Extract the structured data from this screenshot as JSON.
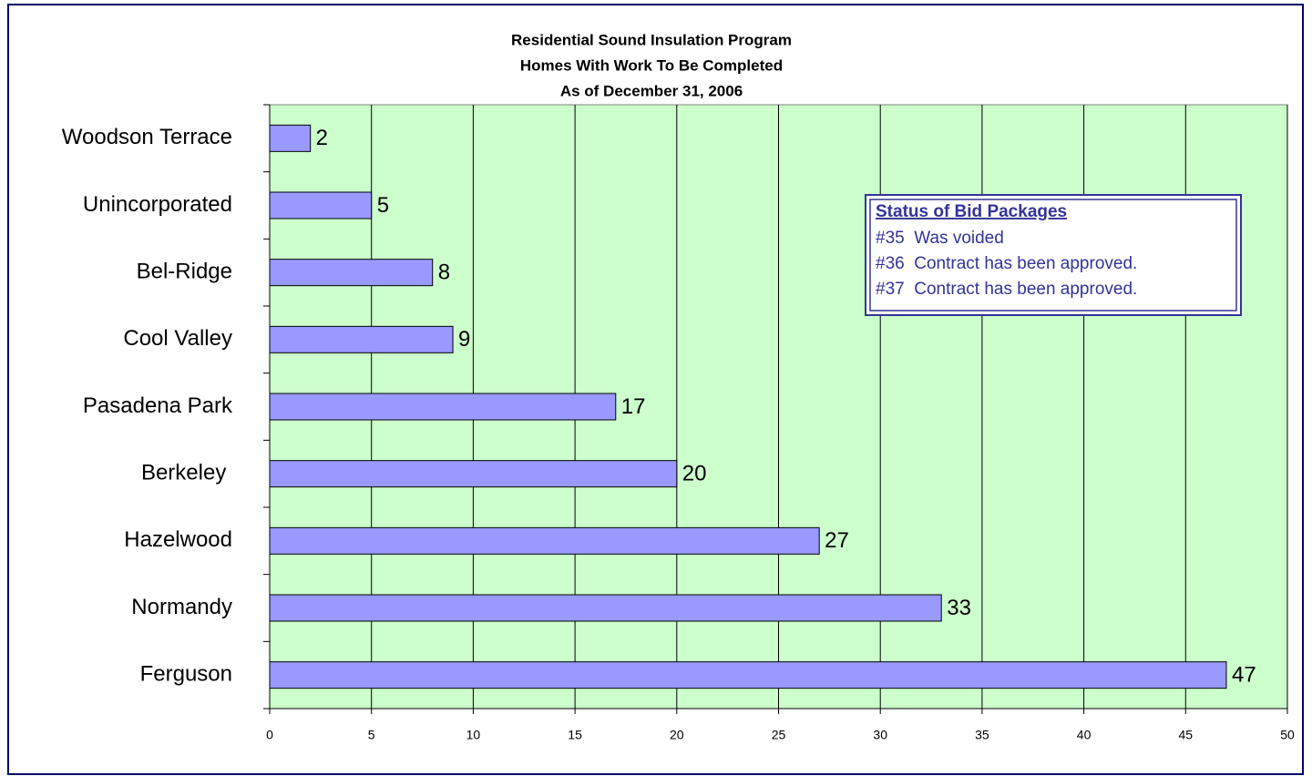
{
  "chart_data": {
    "type": "bar",
    "orientation": "horizontal",
    "title": [
      "Residential Sound Insulation Program",
      "Homes With Work To Be Completed",
      "As of December 31, 2006"
    ],
    "categories": [
      "Woodson Terrace",
      "Unincorporated",
      "Bel-Ridge",
      "Cool Valley",
      "Pasadena Park",
      "Berkeley ",
      "Hazelwood",
      "Normandy",
      "Ferguson"
    ],
    "values": [
      2,
      5,
      8,
      9,
      17,
      20,
      27,
      33,
      47
    ],
    "color": "#9999ff",
    "xlim": [
      0,
      50
    ],
    "xticks": [
      0,
      5,
      10,
      15,
      20,
      25,
      30,
      35,
      40,
      45,
      50
    ],
    "grid": true,
    "background": "#ccffcc",
    "annotation": {
      "title": "Status of Bid Packages",
      "lines": [
        "#35  Was voided",
        "#36  Contract has been approved.",
        "#37  Contract has been approved."
      ]
    }
  }
}
